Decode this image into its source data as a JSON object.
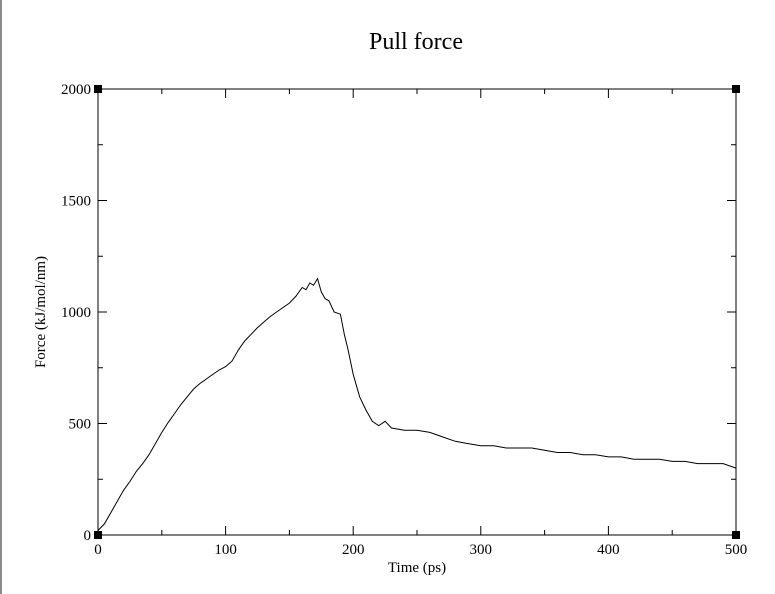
{
  "chart_data": {
    "type": "line",
    "title": "Pull force",
    "xlabel": "Time (ps)",
    "ylabel": "Force (kJ/mol/nm)",
    "xlim": [
      0,
      500
    ],
    "ylim": [
      0,
      2000
    ],
    "x_ticks": [
      0,
      100,
      200,
      300,
      400,
      500
    ],
    "y_ticks": [
      0,
      500,
      1000,
      1500,
      2000
    ],
    "x_tick_labels": [
      "0",
      "100",
      "200",
      "300",
      "400",
      "500"
    ],
    "y_tick_labels": [
      "0",
      "500",
      "1000",
      "1500",
      "2000"
    ],
    "grid": false,
    "series": [
      {
        "color": "#000000",
        "x": [
          0,
          5,
          10,
          15,
          20,
          25,
          30,
          35,
          40,
          45,
          50,
          55,
          60,
          65,
          70,
          75,
          80,
          85,
          90,
          95,
          100,
          105,
          110,
          115,
          120,
          125,
          130,
          135,
          140,
          145,
          150,
          155,
          160,
          163,
          166,
          169,
          172,
          175,
          178,
          181,
          185,
          190,
          193,
          196,
          200,
          205,
          210,
          215,
          220,
          225,
          230,
          240,
          250,
          260,
          270,
          280,
          290,
          300,
          310,
          320,
          330,
          340,
          350,
          360,
          370,
          380,
          390,
          400,
          410,
          420,
          430,
          440,
          450,
          460,
          470,
          480,
          490,
          500
        ],
        "values": [
          20,
          50,
          100,
          150,
          200,
          240,
          285,
          320,
          360,
          410,
          460,
          505,
          545,
          585,
          620,
          655,
          680,
          700,
          720,
          740,
          755,
          780,
          830,
          870,
          900,
          930,
          955,
          980,
          1000,
          1020,
          1040,
          1070,
          1110,
          1100,
          1130,
          1120,
          1150,
          1090,
          1060,
          1050,
          1000,
          990,
          900,
          830,
          720,
          620,
          560,
          510,
          490,
          510,
          480,
          470,
          470,
          460,
          440,
          420,
          410,
          400,
          400,
          390,
          390,
          390,
          380,
          370,
          370,
          360,
          360,
          350,
          350,
          340,
          340,
          340,
          330,
          330,
          320,
          320,
          320,
          300
        ]
      }
    ]
  }
}
